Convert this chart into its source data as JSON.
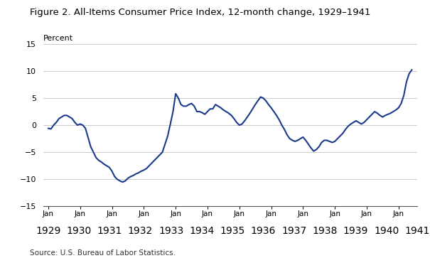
{
  "title": "Figure 2. All-Items Consumer Price Index, 12-month change, 1929–1941",
  "ylabel": "Percent",
  "source": "Source: U.S. Bureau of Labor Statistics.",
  "ylim": [
    -15,
    15
  ],
  "yticks": [
    -15,
    -10,
    -5,
    0,
    5,
    10,
    15
  ],
  "line_color": "#1a3a8c",
  "line_width": 1.5,
  "background_color": "#ffffff",
  "grid_color": "#cccccc",
  "cpi_data": [
    -0.6,
    -0.7,
    0.0,
    0.5,
    1.2,
    1.5,
    1.8,
    1.8,
    1.5,
    1.2,
    0.5,
    0.0,
    0.2,
    0.0,
    -0.6,
    -2.3,
    -4.0,
    -5.0,
    -6.0,
    -6.5,
    -6.8,
    -7.2,
    -7.5,
    -7.8,
    -8.5,
    -9.5,
    -10.0,
    -10.3,
    -10.5,
    -10.3,
    -9.8,
    -9.5,
    -9.3,
    -9.0,
    -8.8,
    -8.5,
    -8.3,
    -8.0,
    -7.5,
    -7.0,
    -6.5,
    -6.0,
    -5.5,
    -5.0,
    -3.5,
    -2.0,
    0.2,
    2.5,
    5.8,
    5.0,
    3.8,
    3.5,
    3.5,
    3.8,
    4.0,
    3.5,
    2.5,
    2.5,
    2.3,
    2.0,
    2.5,
    3.0,
    3.0,
    3.8,
    3.5,
    3.2,
    2.8,
    2.5,
    2.2,
    1.8,
    1.2,
    0.5,
    0.0,
    0.2,
    0.8,
    1.5,
    2.2,
    3.0,
    3.8,
    4.5,
    5.2,
    5.0,
    4.5,
    3.8,
    3.2,
    2.5,
    1.8,
    1.0,
    0.0,
    -0.8,
    -1.8,
    -2.5,
    -2.8,
    -3.0,
    -2.8,
    -2.5,
    -2.2,
    -2.8,
    -3.5,
    -4.2,
    -4.8,
    -4.5,
    -4.0,
    -3.2,
    -2.8,
    -2.8,
    -3.0,
    -3.2,
    -3.0,
    -2.5,
    -2.0,
    -1.5,
    -0.8,
    -0.2,
    0.2,
    0.5,
    0.8,
    0.5,
    0.2,
    0.5,
    1.0,
    1.5,
    2.0,
    2.5,
    2.2,
    1.8,
    1.5,
    1.8,
    2.0,
    2.2,
    2.5,
    2.8,
    3.2,
    4.0,
    5.5,
    8.0,
    9.5,
    10.2
  ],
  "x_tick_years": [
    "1929",
    "1930",
    "1931",
    "1932",
    "1933",
    "1934",
    "1935",
    "1936",
    "1937",
    "1938",
    "1939",
    "1940",
    "1941"
  ]
}
